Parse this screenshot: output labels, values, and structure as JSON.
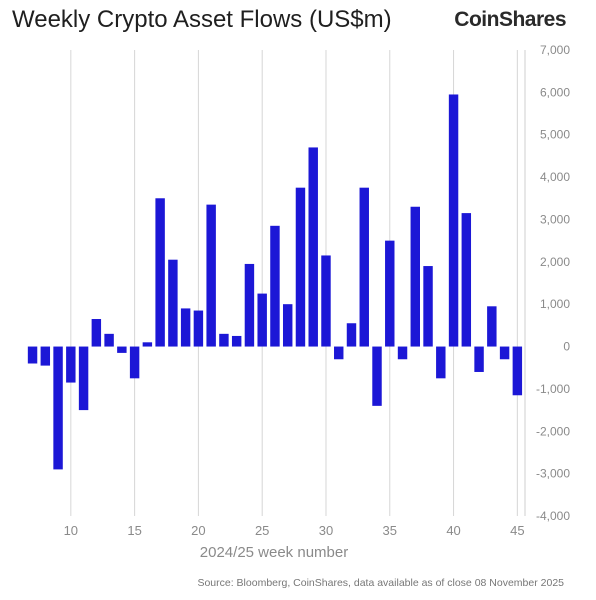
{
  "header": {
    "title": "Weekly Crypto Asset Flows (US$m)",
    "brand": "CoinShares"
  },
  "footer": {
    "source": "Source: Bloomberg, CoinShares, data available as of close 08 November 2025"
  },
  "colors": {
    "bar": "#1c17d6",
    "grid": "#d6d6d6"
  },
  "chart_data": {
    "type": "bar",
    "title": "Weekly Crypto Asset Flows (US$m)",
    "xlabel": "2024/25 week number",
    "ylabel": "",
    "ylim": [
      -4000,
      7000
    ],
    "xlim": [
      6.8,
      45.6
    ],
    "yticks": [
      -4000,
      -3000,
      -2000,
      -1000,
      0,
      1000,
      2000,
      3000,
      4000,
      5000,
      6000,
      7000
    ],
    "ytick_labels": [
      "-4,000",
      "-3,000",
      "-2,000",
      "-1,000",
      "0",
      "1,000",
      "2,000",
      "3,000",
      "4,000",
      "5,000",
      "6,000",
      "7,000"
    ],
    "xticks": [
      10,
      15,
      20,
      25,
      30,
      35,
      40,
      45
    ],
    "xtick_labels": [
      "10",
      "15",
      "20",
      "25",
      "30",
      "35",
      "40",
      "45"
    ],
    "grid": "vertical",
    "x": [
      7,
      8,
      9,
      10,
      11,
      12,
      13,
      14,
      15,
      16,
      17,
      18,
      19,
      20,
      21,
      22,
      23,
      24,
      25,
      26,
      27,
      28,
      29,
      30,
      31,
      32,
      33,
      34,
      35,
      36,
      37,
      38,
      39,
      40,
      41,
      42,
      43,
      44,
      45
    ],
    "values": [
      -400,
      -450,
      -2900,
      -850,
      -1500,
      650,
      300,
      -150,
      -750,
      100,
      3500,
      2050,
      900,
      850,
      3350,
      300,
      250,
      1950,
      1250,
      2850,
      1000,
      3750,
      4700,
      2150,
      -300,
      550,
      3750,
      -1400,
      2500,
      -300,
      3300,
      1900,
      -750,
      5950,
      3150,
      -600,
      950,
      -300,
      -1150
    ]
  }
}
